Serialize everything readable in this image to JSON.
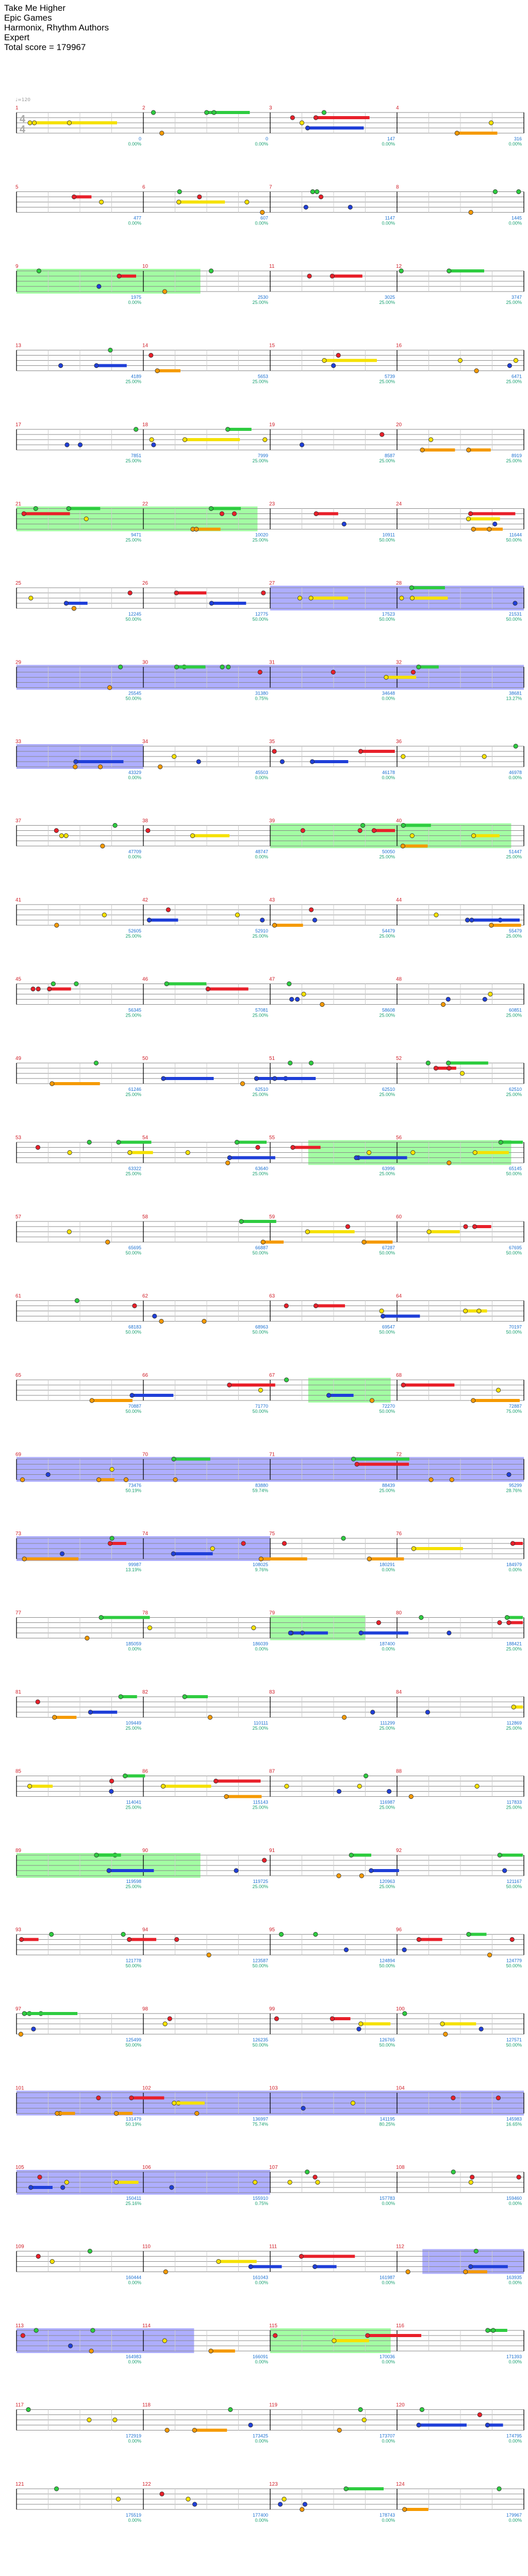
{
  "header": {
    "song_title": "Take Me Higher",
    "game": "Epic Games",
    "authors": "Harmonix, Rhythm Authors",
    "difficulty": "Expert",
    "total_score": "Total score = 179967"
  },
  "time_signature": {
    "numerator": "4",
    "denominator": "4"
  },
  "tempo_label": "♩=120",
  "colors": {
    "green": "#2ecc40",
    "red": "#e8202a",
    "yellow": "#f5e100",
    "blue": "#1f3fd8",
    "orange": "#f59a00",
    "overdrive": "#7cfc7c",
    "solo": "#6b6bff",
    "measure_number": "#d0202a",
    "score": "#1a6fd0",
    "percent": "#18a070"
  },
  "rows": [
    {
      "measures": [
        "1",
        "2",
        "3",
        "4"
      ],
      "scores": [
        "0",
        "0",
        "147",
        "316"
      ],
      "percents": [
        "0.00%",
        "0.00%",
        "0.00%",
        "0.00%"
      ]
    },
    {
      "measures": [
        "5",
        "6",
        "7",
        "8"
      ],
      "scores": [
        "477",
        "607",
        "1147",
        "1445"
      ],
      "percents": [
        "0.00%",
        "0.00%",
        "0.00%",
        "0.00%"
      ]
    },
    {
      "measures": [
        "9",
        "10",
        "11",
        "12"
      ],
      "scores": [
        "1975",
        "2530",
        "3025",
        "3747"
      ],
      "percents": [
        "0.00%",
        "25.00%",
        "25.00%",
        "25.00%"
      ]
    },
    {
      "measures": [
        "13",
        "14",
        "15",
        "16"
      ],
      "scores": [
        "4189",
        "5653",
        "5739",
        "6471"
      ],
      "percents": [
        "25.00%",
        "25.00%",
        "25.00%",
        "25.00%"
      ]
    },
    {
      "measures": [
        "17",
        "18",
        "19",
        "20"
      ],
      "scores": [
        "7851",
        "7999",
        "8587",
        "8919"
      ],
      "percents": [
        "25.00%",
        "25.00%",
        "25.00%",
        "25.00%"
      ]
    },
    {
      "measures": [
        "21",
        "22",
        "23",
        "24"
      ],
      "scores": [
        "9471",
        "10020",
        "10911",
        "11644"
      ],
      "percents": [
        "25.00%",
        "25.00%",
        "50.00%",
        "50.00%"
      ]
    },
    {
      "measures": [
        "25",
        "26",
        "27",
        "28"
      ],
      "scores": [
        "12245",
        "12775",
        "17523",
        "21531"
      ],
      "percents": [
        "50.00%",
        "50.00%",
        "50.00%",
        "50.00%"
      ]
    },
    {
      "measures": [
        "29",
        "30",
        "31",
        "32"
      ],
      "scores": [
        "25545",
        "31380",
        "34648",
        "38681"
      ],
      "percents": [
        "50.00%",
        "0.75%",
        "0.00%",
        "13.27%"
      ]
    },
    {
      "measures": [
        "33",
        "34",
        "35",
        "36"
      ],
      "scores": [
        "43329",
        "45503",
        "46178",
        "46978"
      ],
      "percents": [
        "0.00%",
        "0.00%",
        "0.00%",
        "0.00%"
      ]
    },
    {
      "measures": [
        "37",
        "38",
        "39",
        "40"
      ],
      "scores": [
        "47709",
        "48747",
        "50050",
        "51447"
      ],
      "percents": [
        "0.00%",
        "0.00%",
        "25.00%",
        "25.00%"
      ]
    },
    {
      "measures": [
        "41",
        "42",
        "43",
        "44"
      ],
      "scores": [
        "52605",
        "52910",
        "54479",
        "55479"
      ],
      "percents": [
        "25.00%",
        "25.00%",
        "25.00%",
        "25.00%"
      ]
    },
    {
      "measures": [
        "45",
        "46",
        "47",
        "48"
      ],
      "scores": [
        "56345",
        "57081",
        "58608",
        "60851"
      ],
      "percents": [
        "25.00%",
        "25.00%",
        "25.00%",
        "25.00%"
      ]
    },
    {
      "measures": [
        "49",
        "50",
        "51",
        "52"
      ],
      "scores": [
        "61246",
        "62510",
        "62510",
        "62510"
      ],
      "percents": [
        "25.00%",
        "25.00%",
        "25.00%",
        "25.00%"
      ]
    },
    {
      "measures": [
        "53",
        "54",
        "55",
        "56"
      ],
      "scores": [
        "63322",
        "63640",
        "63996",
        "65145"
      ],
      "percents": [
        "25.00%",
        "25.00%",
        "25.00%",
        "50.00%"
      ]
    },
    {
      "measures": [
        "57",
        "58",
        "59",
        "60"
      ],
      "scores": [
        "65695",
        "66887",
        "67287",
        "67695"
      ],
      "percents": [
        "50.00%",
        "50.00%",
        "50.00%",
        "50.00%"
      ]
    },
    {
      "measures": [
        "61",
        "62",
        "63",
        "64"
      ],
      "scores": [
        "68183",
        "68963",
        "69547",
        "70197"
      ],
      "percents": [
        "50.00%",
        "50.00%",
        "50.00%",
        "50.00%"
      ]
    },
    {
      "measures": [
        "65",
        "66",
        "67",
        "68"
      ],
      "scores": [
        "70887",
        "71770",
        "72270",
        "72887"
      ],
      "percents": [
        "50.00%",
        "50.00%",
        "50.00%",
        "75.00%"
      ]
    },
    {
      "measures": [
        "69",
        "70",
        "71",
        "72"
      ],
      "scores": [
        "73476",
        "83880",
        "88439",
        "95299"
      ],
      "percents": [
        "50.19%",
        "59.74%",
        "25.00%",
        "28.76%"
      ]
    },
    {
      "measures": [
        "73",
        "74",
        "75",
        "76"
      ],
      "scores": [
        "99987",
        "108025",
        "180291",
        "184979"
      ],
      "percents": [
        "13.19%",
        "9.76%",
        "0.00%",
        "0.00%"
      ]
    },
    {
      "measures": [
        "77",
        "78",
        "79",
        "80"
      ],
      "scores": [
        "185059",
        "186039",
        "187400",
        "188421"
      ],
      "percents": [
        "0.00%",
        "0.00%",
        "0.00%",
        "25.00%"
      ]
    },
    {
      "measures": [
        "81",
        "82",
        "83",
        "84"
      ],
      "scores": [
        "109449",
        "110111",
        "111299",
        "112869"
      ],
      "percents": [
        "25.00%",
        "25.00%",
        "25.00%",
        "25.00%"
      ]
    },
    {
      "measures": [
        "85",
        "86",
        "87",
        "88"
      ],
      "scores": [
        "114041",
        "115143",
        "116987",
        "117833"
      ],
      "percents": [
        "25.00%",
        "25.00%",
        "25.00%",
        "25.00%"
      ]
    },
    {
      "measures": [
        "89",
        "90",
        "91",
        "92"
      ],
      "scores": [
        "119598",
        "119725",
        "120963",
        "121167"
      ],
      "percents": [
        "25.00%",
        "25.00%",
        "25.00%",
        "50.00%"
      ]
    },
    {
      "measures": [
        "93",
        "94",
        "95",
        "96"
      ],
      "scores": [
        "121778",
        "123587",
        "124894",
        "124779"
      ],
      "percents": [
        "50.00%",
        "50.00%",
        "50.00%",
        "50.00%"
      ]
    },
    {
      "measures": [
        "97",
        "98",
        "99",
        "100"
      ],
      "scores": [
        "125499",
        "126235",
        "126765",
        "127571"
      ],
      "percents": [
        "50.00%",
        "50.00%",
        "50.00%",
        "50.00%"
      ]
    },
    {
      "measures": [
        "101",
        "102",
        "103",
        "104"
      ],
      "scores": [
        "131479",
        "136997",
        "141195",
        "145983"
      ],
      "percents": [
        "50.19%",
        "75.74%",
        "80.25%",
        "16.65%"
      ]
    },
    {
      "measures": [
        "105",
        "106",
        "107",
        "108"
      ],
      "scores": [
        "150411",
        "155910",
        "157783",
        "159460"
      ],
      "percents": [
        "25.16%",
        "0.75%",
        "0.00%",
        "0.00%"
      ]
    },
    {
      "measures": [
        "109",
        "110",
        "111",
        "112"
      ],
      "scores": [
        "160444",
        "161043",
        "161987",
        "163935"
      ],
      "percents": [
        "0.00%",
        "0.00%",
        "0.00%",
        "0.00%"
      ]
    },
    {
      "measures": [
        "113",
        "114",
        "115",
        "116"
      ],
      "scores": [
        "164983",
        "166091",
        "170036",
        "171393"
      ],
      "percents": [
        "0.00%",
        "0.00%",
        "0.00%",
        "0.00%"
      ]
    },
    {
      "measures": [
        "117",
        "118",
        "119",
        "120"
      ],
      "scores": [
        "172919",
        "173425",
        "173707",
        "174795"
      ],
      "percents": [
        "0.00%",
        "0.00%",
        "0.00%",
        "0.00%"
      ]
    },
    {
      "measures": [
        "121",
        "122",
        "123",
        "124"
      ],
      "scores": [
        "175519",
        "177400",
        "178743",
        "179967"
      ],
      "percents": [
        "0.00%",
        "0.00%",
        "0.00%",
        "0.00%"
      ]
    }
  ],
  "overdrive_sections": [
    {
      "row": 2,
      "from": 0.0,
      "to": 1.45
    },
    {
      "row": 5,
      "from": 0.0,
      "to": 1.9
    },
    {
      "row": 9,
      "from": 2.0,
      "to": 3.9
    },
    {
      "row": 13,
      "from": 2.3,
      "to": 3.9
    },
    {
      "row": 16,
      "from": 2.3,
      "to": 2.95
    },
    {
      "row": 19,
      "from": 2.0,
      "to": 2.75
    },
    {
      "row": 22,
      "from": 0.0,
      "to": 1.45
    },
    {
      "row": 28,
      "from": 2.0,
      "to": 2.95
    }
  ],
  "solo_sections": [
    {
      "row": 6,
      "from": 2.0,
      "to": 4.0
    },
    {
      "row": 7,
      "from": 0.0,
      "to": 4.0
    },
    {
      "row": 8,
      "from": 0.0,
      "to": 1.0
    },
    {
      "row": 17,
      "from": 0.0,
      "to": 4.0
    },
    {
      "row": 18,
      "from": 0.0,
      "to": 2.0
    },
    {
      "row": 25,
      "from": 0.0,
      "to": 4.0
    },
    {
      "row": 26,
      "from": 0.0,
      "to": 2.0
    },
    {
      "row": 27,
      "from": 3.2,
      "to": 4.0
    },
    {
      "row": 28,
      "from": 0.0,
      "to": 1.4
    }
  ]
}
